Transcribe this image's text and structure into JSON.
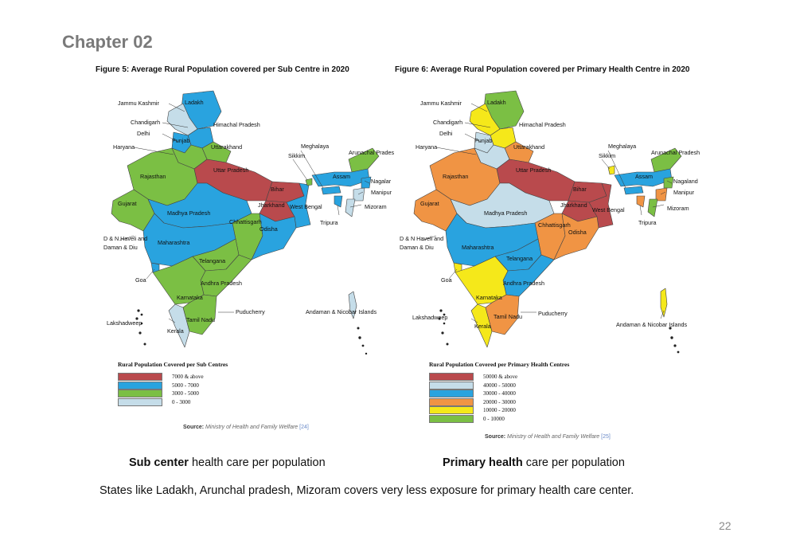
{
  "chapter": "Chapter 02",
  "figures": [
    {
      "title": "Figure 5: Average Rural Population covered per Sub Centre in 2020",
      "legend_title": "Rural Population Covered per Sub Centres",
      "legend": [
        {
          "label": "7000 & above",
          "color": "#b94a4d"
        },
        {
          "label": "5000 - 7000",
          "color": "#29a3df"
        },
        {
          "label": "3000 - 5000",
          "color": "#7bbf44"
        },
        {
          "label": "0 - 3000",
          "color": "#c5dde9"
        }
      ],
      "source_label": "Source:",
      "source_text": "Ministry of Health and Family Welfare",
      "source_ref": "[24]",
      "labels": [
        "Ladakh",
        "Jammu Kashmir",
        "Chandigarh",
        "Himachal Pradesh",
        "Delhi",
        "Punjab",
        "Uttarakhand",
        "Haryana",
        "Meghalaya",
        "Arunachal Prades",
        "Sikkim",
        "Uttar Pradesh",
        "Assam",
        "Rajasthan",
        "Nagalar",
        "Bihar",
        "Manipur",
        "Gujarat",
        "Jharkhand",
        "West Bengal",
        "Mizoram",
        "Madhya Pradesh",
        "Chhattisgarh",
        "Tripura",
        "Odisha",
        "D & N Haveli and",
        "Daman & Diu",
        "Maharashtra",
        "Telangana",
        "Goa",
        "Andhra Pradesh",
        "Karnataka",
        "Puducherry",
        "Andaman & Nicobar Islands",
        "Lakshadweep",
        "Tamil Nadu",
        "Kerala"
      ]
    },
    {
      "title": "Figure 6: Average Rural Population covered per Primary Health Centre in 2020",
      "legend_title": "Rural Population Covered per Primary Health Centres",
      "legend": [
        {
          "label": "50000 & above",
          "color": "#b94a4d"
        },
        {
          "label": "40000 - 50000",
          "color": "#c5dde9"
        },
        {
          "label": "30000 - 40000",
          "color": "#29a3df"
        },
        {
          "label": "20000 - 30000",
          "color": "#f09444"
        },
        {
          "label": "10000 - 20000",
          "color": "#f5e81a"
        },
        {
          "label": "0 - 10000",
          "color": "#7bbf44"
        }
      ],
      "source_label": "Source:",
      "source_text": "Ministry of Health and Family Welfare",
      "source_ref": "[25]",
      "labels": [
        "Ladakh",
        "Jammu Kashmir",
        "Chandigarh",
        "Himachal Pradesh",
        "Delhi",
        "Punjab",
        "Uttarakhand",
        "Haryana",
        "Meghalaya",
        "Arunachal Pradesh",
        "Sikkim",
        "Uttar Pradesh",
        "Assam",
        "Rajasthan",
        "Nagaland",
        "Bihar",
        "Manipur",
        "Gujarat",
        "Jharkhand",
        "West Bengal",
        "Mizoram",
        "Madhya Pradesh",
        "Chhattisgarh",
        "Tripura",
        "Odisha",
        "D & N Haveli and",
        "Daman & Diu",
        "Maharashtra",
        "Telangana",
        "Goa",
        "Andhra Pradesh",
        "Karnataka",
        "Puducherry",
        "Andaman & Nicobar Islands",
        "Lakshadweep",
        "Tamil Nadu",
        "Kerala"
      ]
    }
  ],
  "captions": {
    "left_bold": "Sub center",
    "left_rest": " health care per population",
    "right_bold": "Primary health",
    "right_rest": " care per population"
  },
  "note": "States like Ladakh, Arunchal pradesh, Mizoram covers very less exposure for  primary health care center.",
  "page_number": "22",
  "state_colors": {
    "fig5": {
      "Ladakh": "#29a3df",
      "Jammu Kashmir": "#c5dde9",
      "Himachal Pradesh": "#29a3df",
      "Punjab": "#29a3df",
      "Haryana": "#7bbf44",
      "Uttarakhand": "#7bbf44",
      "Rajasthan": "#7bbf44",
      "Uttar Pradesh": "#b94a4d",
      "Bihar": "#b94a4d",
      "Jharkhand": "#b94a4d",
      "West Bengal": "#29a3df",
      "Gujarat": "#7bbf44",
      "Madhya Pradesh": "#29a3df",
      "Chhattisgarh": "#7bbf44",
      "Odisha": "#29a3df",
      "Maharashtra": "#29a3df",
      "Telangana": "#7bbf44",
      "Andhra Pradesh": "#7bbf44",
      "Karnataka": "#7bbf44",
      "Goa": "#29a3df",
      "Kerala": "#c5dde9",
      "Tamil Nadu": "#7bbf44",
      "Assam": "#29a3df",
      "Arunachal Pradesh": "#7bbf44",
      "Meghalaya": "#29a3df",
      "Nagaland": "#29a3df",
      "Manipur": "#c5dde9",
      "Mizoram": "#c5dde9",
      "Tripura": "#29a3df",
      "Sikkim": "#7bbf44",
      "Andaman & Nicobar Islands": "#c5dde9"
    },
    "fig6": {
      "Ladakh": "#7bbf44",
      "Jammu Kashmir": "#f5e81a",
      "Himachal Pradesh": "#f5e81a",
      "Punjab": "#c5dde9",
      "Haryana": "#c5dde9",
      "Uttarakhand": "#f09444",
      "Rajasthan": "#f09444",
      "Uttar Pradesh": "#b94a4d",
      "Bihar": "#b94a4d",
      "Jharkhand": "#b94a4d",
      "West Bengal": "#b94a4d",
      "Gujarat": "#f09444",
      "Madhya Pradesh": "#c5dde9",
      "Chhattisgarh": "#f09444",
      "Odisha": "#f09444",
      "Maharashtra": "#29a3df",
      "Telangana": "#29a3df",
      "Andhra Pradesh": "#29a3df",
      "Karnataka": "#f5e81a",
      "Goa": "#f5e81a",
      "Kerala": "#f5e81a",
      "Tamil Nadu": "#f09444",
      "Assam": "#29a3df",
      "Arunachal Pradesh": "#7bbf44",
      "Meghalaya": "#29a3df",
      "Nagaland": "#7bbf44",
      "Manipur": "#f09444",
      "Mizoram": "#7bbf44",
      "Tripura": "#f09444",
      "Sikkim": "#f5e81a",
      "Andaman & Nicobar Islands": "#f5e81a"
    }
  }
}
